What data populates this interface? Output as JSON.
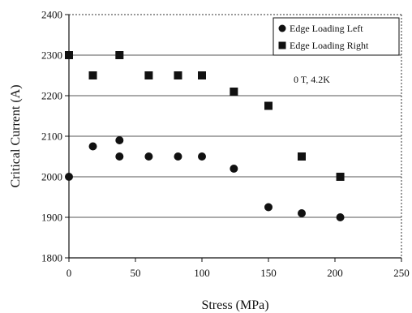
{
  "chart_data": {
    "type": "scatter",
    "title": "",
    "xlabel": "Stress (MPa)",
    "ylabel": "Critical Current (A)",
    "xlim": [
      0,
      250
    ],
    "ylim": [
      1800,
      2400
    ],
    "x_ticks": [
      0,
      50,
      100,
      150,
      200,
      250
    ],
    "y_ticks": [
      1800,
      1900,
      2000,
      2100,
      2200,
      2300,
      2400
    ],
    "grid": "horizontal",
    "legend_position": "top-right",
    "annotation": "0 T, 4.2K",
    "series": [
      {
        "name": "Edge Loading Left",
        "marker": "circle",
        "color": "#111111",
        "x": [
          0,
          18,
          38,
          38,
          60,
          82,
          100,
          124,
          150,
          175,
          204
        ],
        "y": [
          2000,
          2075,
          2090,
          2050,
          2050,
          2050,
          2050,
          2020,
          1925,
          1910,
          1900
        ]
      },
      {
        "name": "Edge Loading Right",
        "marker": "square",
        "color": "#111111",
        "x": [
          0,
          18,
          38,
          60,
          82,
          100,
          124,
          150,
          175,
          204
        ],
        "y": [
          2300,
          2250,
          2300,
          2250,
          2250,
          2250,
          2210,
          2175,
          2050,
          2000
        ]
      }
    ]
  }
}
